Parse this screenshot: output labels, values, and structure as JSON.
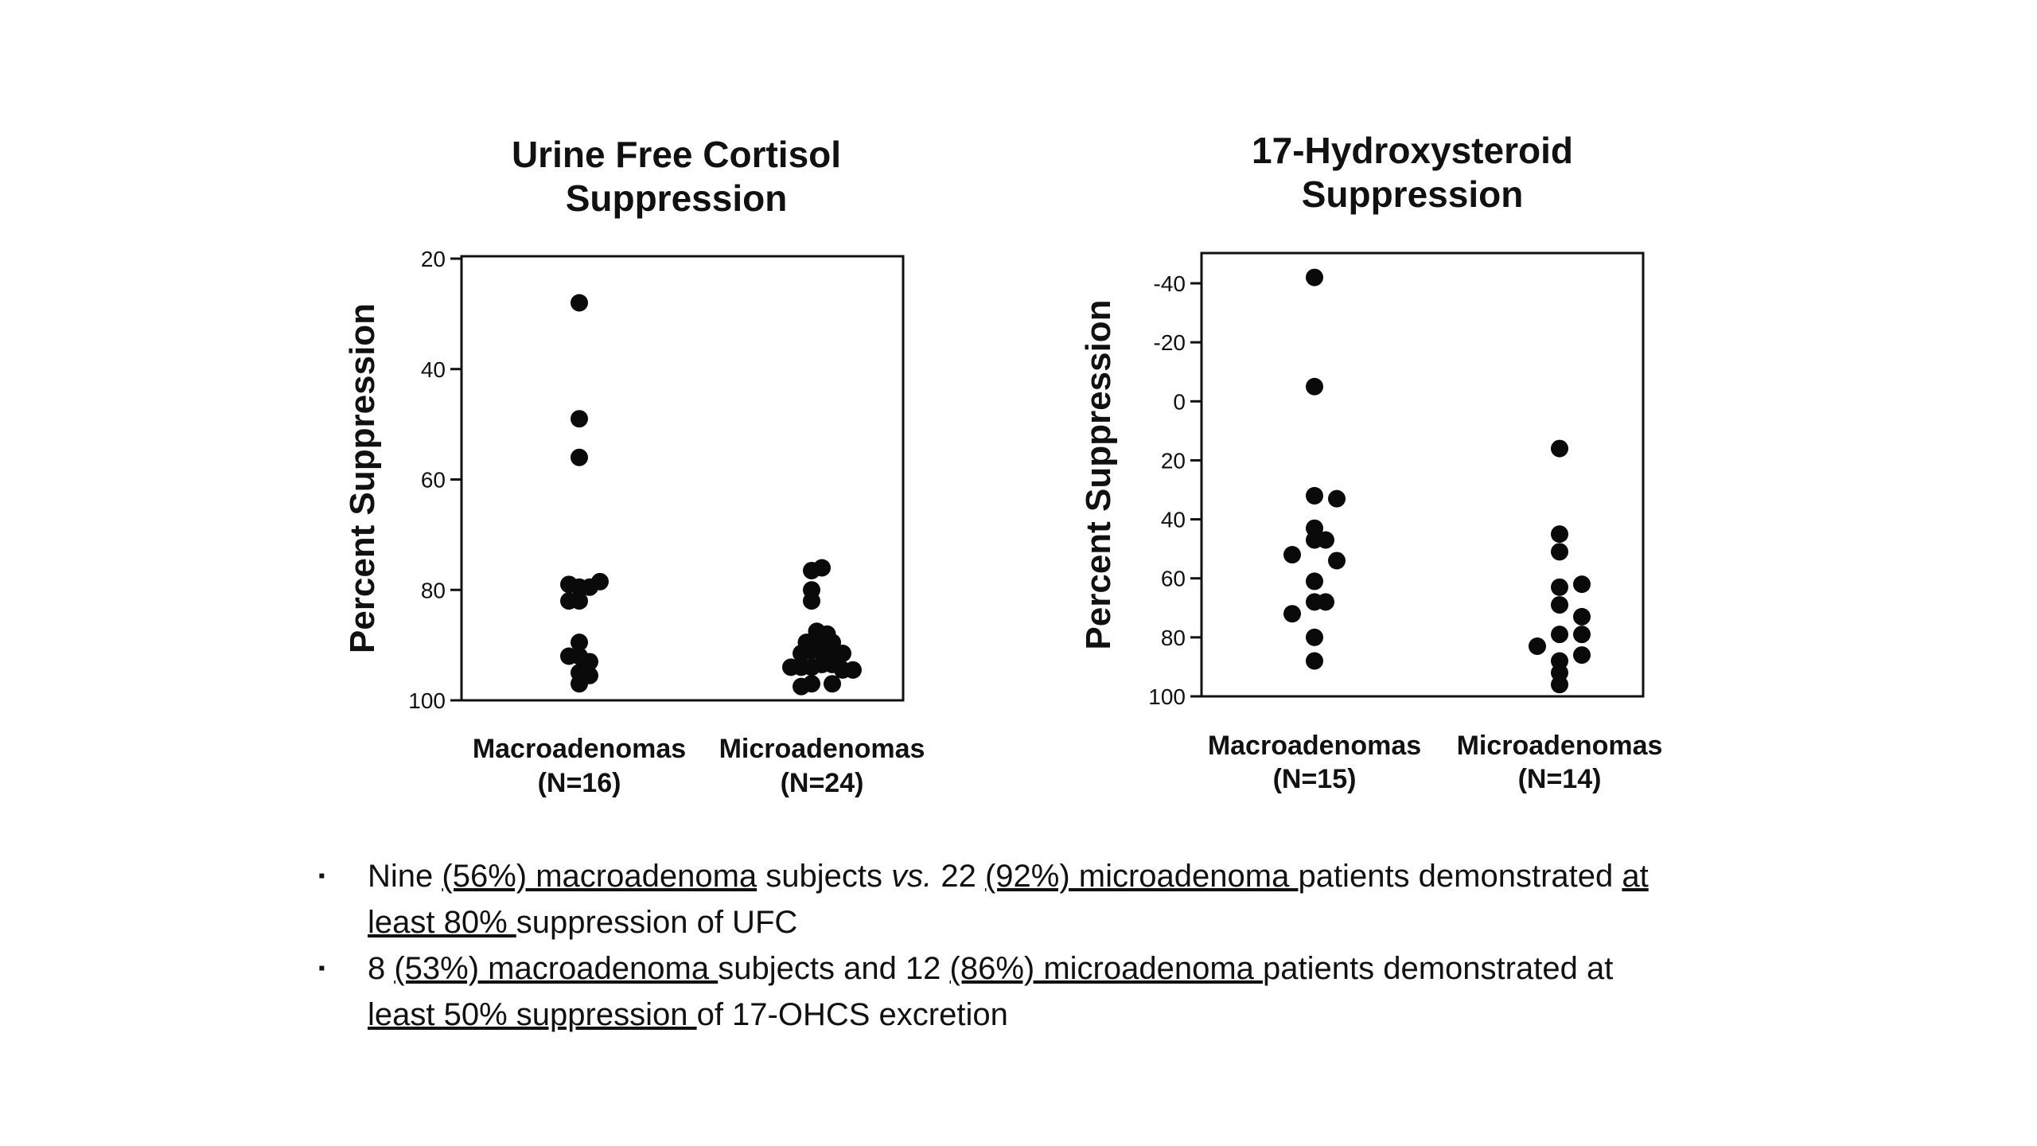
{
  "chart_data": [
    {
      "type": "scatter",
      "title": [
        "Urine Free Cortisol",
        "Suppression"
      ],
      "ylabel": "Percent Suppression",
      "xlabel": "",
      "ylim": [
        20,
        100
      ],
      "y_inverted": true,
      "yticks": [
        "20",
        "40",
        "60",
        "80",
        "100"
      ],
      "ytick_values": [
        20,
        40,
        60,
        80,
        100
      ],
      "grid": false,
      "categories": [
        {
          "name": "Macroadenomas",
          "n": "(N=16)"
        },
        {
          "name": "Microadenomas",
          "n": "(N=24)"
        }
      ],
      "series": [
        {
          "category": "Macroadenomas",
          "points": [
            {
              "offset": 0,
              "y": 28
            },
            {
              "offset": 0,
              "y": 49
            },
            {
              "offset": 0,
              "y": 56
            },
            {
              "offset": -0.5,
              "y": 79
            },
            {
              "offset": 0,
              "y": 79.5
            },
            {
              "offset": 0.5,
              "y": 79.5
            },
            {
              "offset": 1,
              "y": 78.5
            },
            {
              "offset": -0.5,
              "y": 82
            },
            {
              "offset": 0,
              "y": 82
            },
            {
              "offset": 0,
              "y": 89.5
            },
            {
              "offset": -0.5,
              "y": 92
            },
            {
              "offset": 0,
              "y": 92
            },
            {
              "offset": 0.5,
              "y": 93
            },
            {
              "offset": 0,
              "y": 95
            },
            {
              "offset": 0.5,
              "y": 95.5
            },
            {
              "offset": 0,
              "y": 97
            }
          ]
        },
        {
          "category": "Microadenomas",
          "points": [
            {
              "offset": -0.5,
              "y": 76.5
            },
            {
              "offset": 0,
              "y": 76
            },
            {
              "offset": -0.5,
              "y": 80
            },
            {
              "offset": -0.5,
              "y": 82
            },
            {
              "offset": -0.25,
              "y": 87.5
            },
            {
              "offset": 0.25,
              "y": 88
            },
            {
              "offset": -0.75,
              "y": 89.5
            },
            {
              "offset": 0,
              "y": 89
            },
            {
              "offset": 0.5,
              "y": 89.5
            },
            {
              "offset": -1,
              "y": 91.5
            },
            {
              "offset": -0.5,
              "y": 91
            },
            {
              "offset": 0,
              "y": 91
            },
            {
              "offset": 0.5,
              "y": 91
            },
            {
              "offset": 1,
              "y": 91.5
            },
            {
              "offset": -1.5,
              "y": 94
            },
            {
              "offset": -1,
              "y": 94
            },
            {
              "offset": -0.5,
              "y": 94
            },
            {
              "offset": 0,
              "y": 93.5
            },
            {
              "offset": 0.5,
              "y": 93.5
            },
            {
              "offset": 1,
              "y": 94.5
            },
            {
              "offset": 1.5,
              "y": 94.5
            },
            {
              "offset": -1,
              "y": 97.5
            },
            {
              "offset": -0.5,
              "y": 97
            },
            {
              "offset": 0.5,
              "y": 97
            }
          ]
        }
      ]
    },
    {
      "type": "scatter",
      "title": [
        "17-Hydroxysteroid",
        "Suppression"
      ],
      "ylabel": "Percent Suppression",
      "xlabel": "",
      "ylim": [
        -50,
        100
      ],
      "y_inverted": true,
      "yticks": [
        "-40",
        "-20",
        "0",
        "20",
        "40",
        "60",
        "80",
        "100"
      ],
      "ytick_values": [
        -40,
        -20,
        0,
        20,
        40,
        60,
        80,
        100
      ],
      "grid": false,
      "categories": [
        {
          "name": "Macroadenomas",
          "n": "(N=15)"
        },
        {
          "name": "Microadenomas",
          "n": "(N=14)"
        }
      ],
      "series": [
        {
          "category": "Macroadenomas",
          "points": [
            {
              "offset": 0,
              "y": -42
            },
            {
              "offset": 0,
              "y": -5
            },
            {
              "offset": 0,
              "y": 32
            },
            {
              "offset": 1,
              "y": 33
            },
            {
              "offset": 0,
              "y": 43
            },
            {
              "offset": 0,
              "y": 47
            },
            {
              "offset": 0.5,
              "y": 47
            },
            {
              "offset": -1,
              "y": 52
            },
            {
              "offset": 1,
              "y": 54
            },
            {
              "offset": 0,
              "y": 61
            },
            {
              "offset": 0,
              "y": 68
            },
            {
              "offset": 0.5,
              "y": 68
            },
            {
              "offset": -1,
              "y": 72
            },
            {
              "offset": 0,
              "y": 80
            },
            {
              "offset": 0,
              "y": 88
            }
          ]
        },
        {
          "category": "Microadenomas",
          "points": [
            {
              "offset": 0,
              "y": 16
            },
            {
              "offset": 0,
              "y": 45
            },
            {
              "offset": 0,
              "y": 51
            },
            {
              "offset": 0,
              "y": 63
            },
            {
              "offset": 1,
              "y": 62
            },
            {
              "offset": 0,
              "y": 69
            },
            {
              "offset": 1,
              "y": 73
            },
            {
              "offset": 0,
              "y": 79
            },
            {
              "offset": 1,
              "y": 79
            },
            {
              "offset": -1,
              "y": 83
            },
            {
              "offset": 1,
              "y": 86
            },
            {
              "offset": 0,
              "y": 88
            },
            {
              "offset": 0,
              "y": 92
            },
            {
              "offset": 0,
              "y": 96
            }
          ]
        }
      ]
    }
  ],
  "bullets": [
    {
      "parts": [
        {
          "text": "Nine ",
          "style": ""
        },
        {
          "text": "(56%) macroadenoma",
          "style": "u"
        },
        {
          "text": " subjects ",
          "style": ""
        },
        {
          "text": "vs.",
          "style": "i"
        },
        {
          "text": " 22 ",
          "style": ""
        },
        {
          "text": "(92%) microadenoma ",
          "style": "u"
        },
        {
          "text": "patients demonstrated ",
          "style": ""
        },
        {
          "text": "at least 80% ",
          "style": "u"
        },
        {
          "text": "suppression of UFC",
          "style": ""
        }
      ]
    },
    {
      "parts": [
        {
          "text": "8 ",
          "style": ""
        },
        {
          "text": "(53%) macroadenoma ",
          "style": "u"
        },
        {
          "text": "subjects and 12 ",
          "style": ""
        },
        {
          "text": "(86%) microadenoma ",
          "style": "u"
        },
        {
          "text": "patients demonstrated at ",
          "style": ""
        },
        {
          "text": "least 50% suppression ",
          "style": "u"
        },
        {
          "text": "of 17-OHCS excretion",
          "style": ""
        }
      ]
    }
  ]
}
